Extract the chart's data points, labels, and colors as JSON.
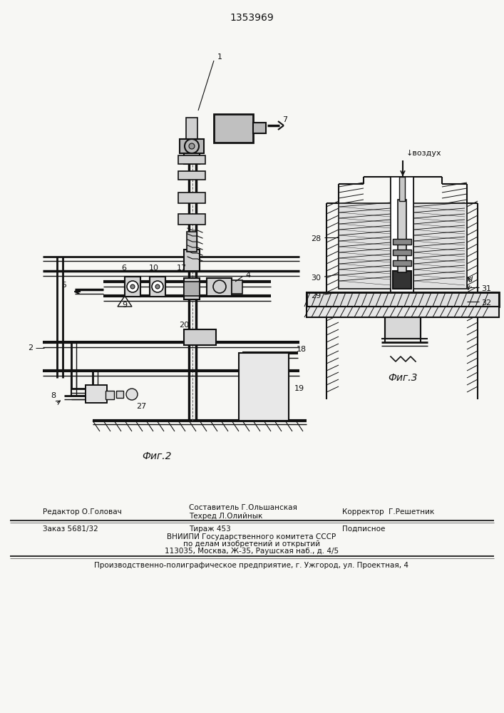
{
  "patent_number": "1353969",
  "background_color": "#f7f7f4",
  "text_color": "#111111",
  "line_color": "#111111",
  "fig2_caption": "Фиг.2",
  "fig3_caption": "Фиг.3",
  "vozduh": "воздух",
  "editor_line": "Редактор О.Головач",
  "compiler_line1": "Составитель Г.Ольшанская",
  "compiler_line2": "Техред Л.Олийнык",
  "corrector_line": "Корректор  Г.Решетник",
  "order_line": "Заказ 5681/32",
  "tirazh_line": "Тираж 453",
  "podpisnoe_line": "Подписное",
  "vniip_line1": "ВНИИПИ Государственного комитета СССР",
  "vniip_line2": "по делам изобретений и открытий",
  "vniip_line3": "113035, Москва, Ж-35, Раушская наб., д. 4/5",
  "prod_line": "Производственно-полиграфическое предприятие, г. Ужгород, ул. Проектная, 4"
}
